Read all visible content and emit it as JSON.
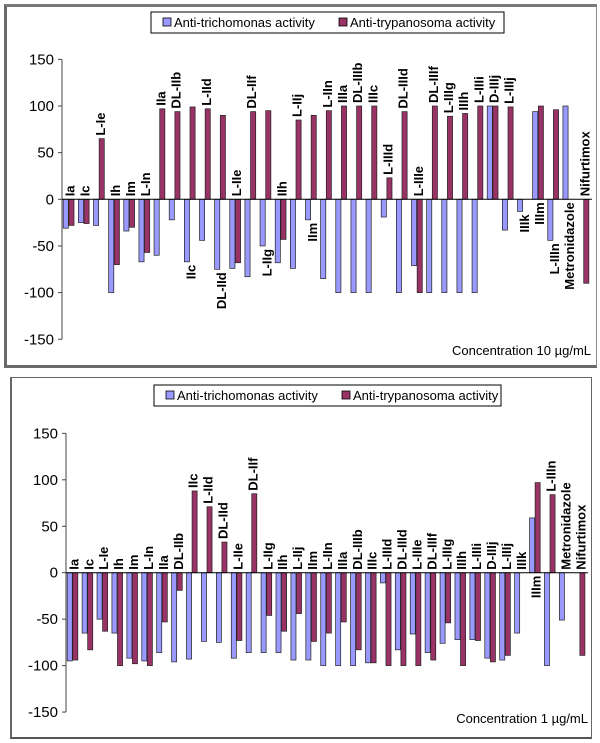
{
  "colors": {
    "series1": "#9999FF",
    "series2": "#993366",
    "axis": "#000000"
  },
  "chart_data": [
    {
      "type": "bar",
      "title": "",
      "annotation": "Concentration 10 µg/mL",
      "xlabel": "",
      "ylabel": "",
      "ylim": [
        -150,
        150
      ],
      "yticks": [
        150,
        100,
        50,
        0,
        -50,
        -100,
        -150
      ],
      "grid": false,
      "legend_position": "top-center",
      "categories": [
        "Ia",
        "Ic",
        "L-Ie",
        "Ih",
        "Im",
        "L-In",
        "IIa",
        "DL-IIb",
        "IIc",
        "L-IId",
        "DL-IId",
        "L-IIe",
        "DL-IIf",
        "L-IIg",
        "IIh",
        "L-IIj",
        "IIm",
        "L-IIn",
        "IIIa",
        "DL-IIIb",
        "IIIc",
        "L-IIId",
        "DL-IIId",
        "L-IIIe",
        "DL-IIIf",
        "L-IIIg",
        "IIIh",
        "L-IIIi",
        "D-IIIj",
        "L-IIIj",
        "IIIk",
        "IIIm",
        "L-IIIn",
        "Metronidazole",
        "Nifurtimox"
      ],
      "series": [
        {
          "name": "Anti-trichomonas activity",
          "values": [
            -31,
            -25,
            -28,
            -100,
            -34,
            -67,
            -60,
            -22,
            -67,
            -44,
            -75,
            -74,
            -83,
            -50,
            -68,
            -74,
            -22,
            -85,
            -100,
            -100,
            -100,
            -19,
            -100,
            -71,
            -100,
            -100,
            -100,
            -100,
            100,
            -33,
            -13,
            94,
            -44,
            100,
            null
          ]
        },
        {
          "name": "Anti-trypanosoma activity",
          "values": [
            -28,
            -26,
            65,
            -70,
            -30,
            -57,
            97,
            94,
            99,
            97,
            90,
            -68,
            94,
            95,
            -43,
            85,
            90,
            95,
            100,
            100,
            100,
            23,
            94,
            -100,
            100,
            89,
            92,
            100,
            100,
            99,
            null,
            100,
            96,
            null,
            -90
          ]
        }
      ],
      "label_side": [
        "up",
        "up",
        "up",
        "up",
        "up",
        "up",
        "up",
        "up",
        "down",
        "up",
        "down",
        "up",
        "up",
        "down",
        "up",
        "up",
        "down",
        "up",
        "up",
        "up",
        "up",
        "up",
        "up",
        "up",
        "up",
        "up",
        "up",
        "up",
        "up",
        "up",
        "down",
        "down",
        "down",
        "down",
        "up"
      ]
    },
    {
      "type": "bar",
      "title": "",
      "annotation": "Concentration 1 µg/mL",
      "xlabel": "",
      "ylabel": "",
      "ylim": [
        -150,
        150
      ],
      "yticks": [
        150,
        100,
        50,
        0,
        -50,
        -100,
        -150
      ],
      "grid": false,
      "legend_position": "top-center",
      "categories": [
        "Ia",
        "Ic",
        "L-Ie",
        "Ih",
        "Im",
        "L-In",
        "IIa",
        "DL-IIb",
        "IIc",
        "L-IId",
        "DL-IId",
        "L-IIe",
        "DL-IIf",
        "L-IIg",
        "IIh",
        "L-IIj",
        "IIm",
        "L-IIn",
        "IIIa",
        "DL-IIIb",
        "IIIc",
        "L-IIId",
        "DL-IIId",
        "L-IIIe",
        "DL-IIIf",
        "L-IIIg",
        "IIIh",
        "L-IIIi",
        "D-IIIj",
        "L-IIIj",
        "IIIk",
        "IIIm",
        "L-IIIn",
        "Metronidazole",
        "Nifurtimox"
      ],
      "series": [
        {
          "name": "Anti-trichomonas activity",
          "values": [
            -95,
            -65,
            -50,
            -65,
            -92,
            -95,
            -86,
            -96,
            -93,
            -74,
            -75,
            -92,
            -86,
            -86,
            -86,
            -94,
            -94,
            -100,
            -100,
            -100,
            -97,
            -11,
            -83,
            -66,
            -86,
            -76,
            -72,
            -72,
            -92,
            -94,
            -65,
            59,
            -100,
            -51,
            null
          ]
        },
        {
          "name": "Anti-trypanosoma activity",
          "values": [
            -94,
            -83,
            -63,
            -100,
            -98,
            -100,
            -53,
            -19,
            88,
            71,
            33,
            -73,
            85,
            -46,
            -63,
            -44,
            -74,
            -65,
            -53,
            -83,
            -97,
            -100,
            -100,
            -100,
            -94,
            -54,
            -100,
            -73,
            -96,
            -89,
            null,
            97,
            84,
            null,
            -89
          ]
        }
      ],
      "label_side": [
        "up",
        "up",
        "up",
        "up",
        "up",
        "up",
        "up",
        "up",
        "up",
        "up",
        "up",
        "up",
        "up",
        "up",
        "up",
        "up",
        "up",
        "up",
        "up",
        "up",
        "up",
        "up",
        "up",
        "up",
        "up",
        "up",
        "up",
        "up",
        "up",
        "up",
        "up",
        "down",
        "up",
        "up",
        "up"
      ]
    }
  ]
}
